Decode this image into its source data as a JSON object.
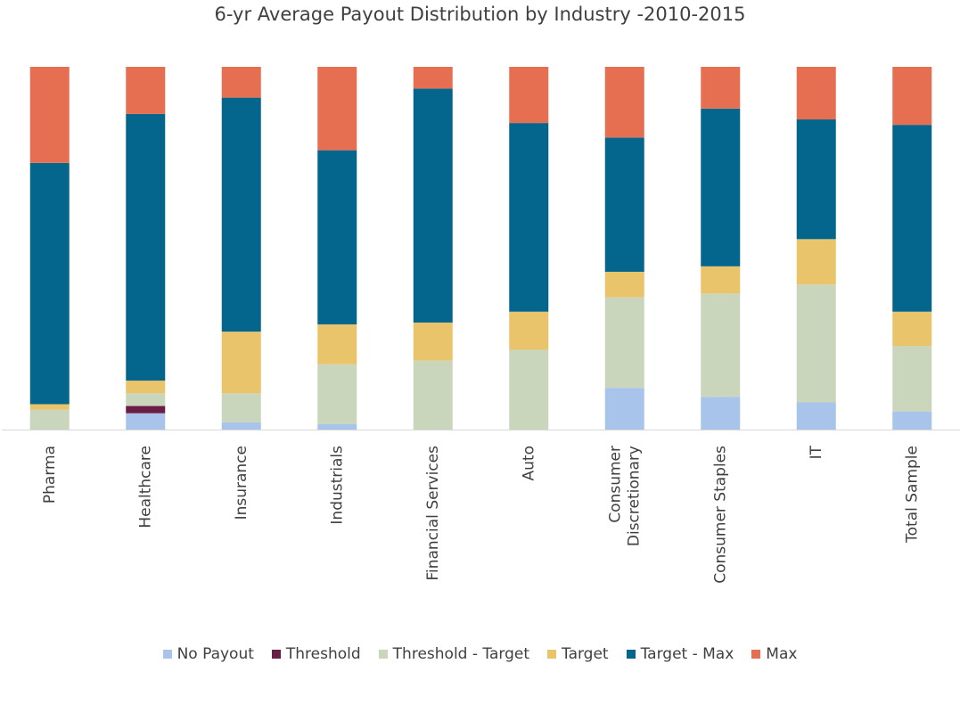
{
  "chart_data": {
    "type": "bar",
    "stacked": true,
    "normalized": true,
    "title": "6-yr Average Payout Distribution by Industry -2010-2015",
    "categories": [
      "Pharma",
      "Healthcare",
      "Insurance",
      "Industrials",
      "Financial Services",
      "Auto",
      "Consumer Discretionary",
      "Consumer Staples",
      "IT",
      "Total Sample"
    ],
    "series": [
      {
        "name": "No Payout",
        "color": "#A9C4EB",
        "values": [
          0,
          4.5,
          2,
          1.5,
          0,
          0,
          11.5,
          9,
          7.5,
          5
        ]
      },
      {
        "name": "Threshold",
        "color": "#6B1E45",
        "values": [
          0,
          2,
          0,
          0,
          0,
          0,
          0,
          0,
          0,
          0
        ]
      },
      {
        "name": "Threshold - Target",
        "color": "#C9D6BC",
        "values": [
          5.5,
          3.5,
          8,
          16.5,
          19,
          22,
          25,
          28.5,
          32.5,
          18
        ]
      },
      {
        "name": "Target",
        "color": "#E9C46A",
        "values": [
          1.5,
          3.5,
          17,
          11,
          10.5,
          10.5,
          7,
          7.5,
          12.5,
          9.5
        ]
      },
      {
        "name": "Target - Max",
        "color": "#05668D",
        "values": [
          66.5,
          73.5,
          64.5,
          48,
          64.5,
          52,
          37,
          43.5,
          33,
          51.5
        ]
      },
      {
        "name": "Max",
        "color": "#E76F51",
        "values": [
          26.5,
          13,
          8.5,
          23,
          6,
          15.5,
          19.5,
          11.5,
          14.5,
          16
        ]
      }
    ],
    "ylim": [
      0,
      100
    ],
    "legend_position": "bottom",
    "grid": false
  }
}
